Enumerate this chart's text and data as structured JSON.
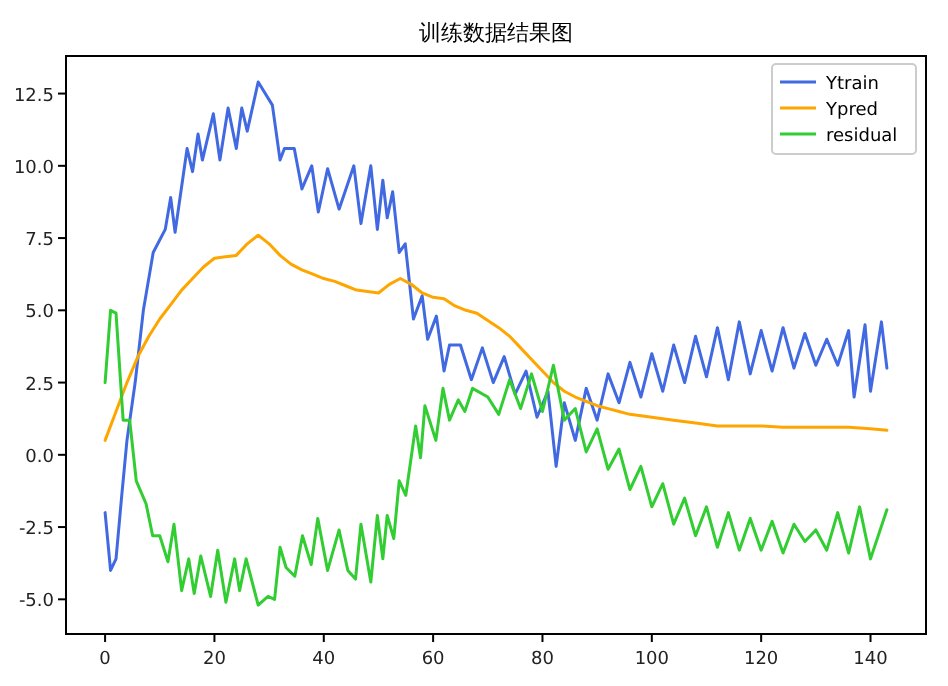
{
  "chart_data": {
    "type": "line",
    "title": "训练数据结果图",
    "xlim": [
      -7.15,
      150.15
    ],
    "ylim": [
      -6.2,
      13.8
    ],
    "xticks": [
      0,
      20,
      40,
      60,
      80,
      100,
      120,
      140
    ],
    "yticks": [
      {
        "value": -5,
        "label": "-5.0"
      },
      {
        "value": -2.5,
        "label": "-2.5"
      },
      {
        "value": 0,
        "label": "0.0"
      },
      {
        "value": 2.5,
        "label": "2.5"
      },
      {
        "value": 5,
        "label": "5.0"
      },
      {
        "value": 7.5,
        "label": "7.5"
      },
      {
        "value": 10,
        "label": "10.0"
      },
      {
        "value": 12.5,
        "label": "12.5"
      }
    ],
    "grid": false,
    "legend": "top right",
    "series": [
      {
        "name": "Ytrain",
        "color": "#4169e1",
        "x": [
          0,
          1,
          2,
          3,
          4,
          5.5,
          7,
          8.8,
          11,
          12,
          12.8,
          15,
          16,
          17,
          17.8,
          19.8,
          21,
          22.5,
          24,
          25,
          26,
          28,
          30.6,
          32,
          32.8,
          34.6,
          36,
          37.8,
          39,
          40.7,
          42.8,
          45.5,
          46.8,
          48.6,
          49.8,
          50.8,
          51.6,
          52.6,
          53.8,
          54.9,
          56.4,
          58,
          59,
          60.6,
          62,
          63,
          65,
          67,
          69,
          71,
          73,
          75,
          77,
          79,
          81,
          82.5,
          84,
          86,
          88,
          90,
          92,
          94,
          96,
          98,
          100,
          102,
          104,
          106,
          108,
          110,
          112,
          114,
          116,
          118,
          120,
          122,
          124,
          126,
          128,
          130,
          132,
          134,
          136,
          137,
          139,
          140,
          142,
          143
        ],
        "values": [
          -2,
          -4,
          -3.6,
          -1.5,
          0.5,
          2.5,
          5,
          7,
          7.8,
          8.9,
          7.7,
          10.6,
          9.8,
          11.1,
          10.2,
          11.8,
          10.2,
          12,
          10.6,
          12,
          11.2,
          12.9,
          12.1,
          10.2,
          10.6,
          10.6,
          9.2,
          10,
          8.4,
          9.9,
          8.5,
          10,
          8,
          10,
          7.8,
          9.5,
          8.2,
          9.1,
          7,
          7.3,
          4.7,
          5.5,
          4,
          4.8,
          2.9,
          3.8,
          3.8,
          2.6,
          3.7,
          2.5,
          3.4,
          2.1,
          2.9,
          1.3,
          2.2,
          -0.4,
          1.8,
          0.5,
          2.3,
          1.2,
          2.8,
          1.8,
          3.2,
          2,
          3.5,
          2.2,
          3.8,
          2.5,
          4.1,
          2.7,
          4.4,
          2.6,
          4.6,
          2.8,
          4.3,
          2.9,
          4.4,
          3,
          4.2,
          3.1,
          4,
          3.1,
          4.3,
          2,
          4.5,
          2.2,
          4.6,
          3
        ]
      },
      {
        "name": "Ypred",
        "color": "#ffa500",
        "x": [
          0,
          2,
          4,
          6,
          8,
          10,
          12,
          14,
          16,
          18,
          20,
          22,
          24,
          26,
          28,
          30,
          32,
          34,
          36,
          38,
          40,
          42,
          44,
          46,
          48,
          50,
          52,
          54,
          56,
          58,
          60,
          62,
          64,
          66,
          68,
          70,
          72,
          74,
          76,
          78,
          80,
          82,
          84,
          86,
          88,
          90,
          92,
          94,
          96,
          98,
          100,
          104,
          108,
          112,
          116,
          120,
          124,
          128,
          132,
          136,
          140,
          143
        ],
        "values": [
          0.5,
          1.5,
          2.5,
          3.4,
          4.1,
          4.7,
          5.2,
          5.7,
          6.1,
          6.5,
          6.8,
          6.85,
          6.9,
          7.3,
          7.6,
          7.3,
          6.9,
          6.6,
          6.4,
          6.25,
          6.1,
          6,
          5.85,
          5.7,
          5.65,
          5.6,
          5.9,
          6.1,
          5.9,
          5.6,
          5.45,
          5.4,
          5.15,
          5,
          4.9,
          4.65,
          4.4,
          4.1,
          3.7,
          3.3,
          2.9,
          2.5,
          2.2,
          2,
          1.85,
          1.7,
          1.6,
          1.5,
          1.4,
          1.35,
          1.3,
          1.2,
          1.1,
          1,
          1,
          1,
          0.95,
          0.95,
          0.95,
          0.95,
          0.9,
          0.85
        ]
      },
      {
        "name": "residual",
        "color": "#32cd32",
        "x": [
          0,
          1,
          2,
          3.3,
          4.5,
          5.7,
          7.5,
          8.7,
          10,
          11.5,
          12.6,
          14,
          15.3,
          16.3,
          17.5,
          19.3,
          20.6,
          22.1,
          23.7,
          24.6,
          25.8,
          28,
          29.8,
          31,
          32,
          33.1,
          34.7,
          36.1,
          37.7,
          38.9,
          40.7,
          42.8,
          44.4,
          45.8,
          46.8,
          48.6,
          49.8,
          50.8,
          51.6,
          52.8,
          53.8,
          55,
          56.8,
          57.7,
          58.5,
          60.5,
          61.8,
          63,
          64.6,
          65.8,
          67.2,
          70,
          72,
          74,
          76,
          78,
          80,
          82,
          84,
          86,
          88,
          90,
          92,
          94,
          96,
          98,
          100,
          102,
          104,
          106,
          108,
          110,
          112,
          114,
          116,
          118,
          120,
          122,
          124,
          126,
          128,
          130,
          132,
          134,
          136,
          138,
          140,
          143
        ],
        "values": [
          2.5,
          5,
          4.9,
          1.2,
          1.2,
          -0.9,
          -1.7,
          -2.8,
          -2.8,
          -3.7,
          -2.4,
          -4.7,
          -3.6,
          -4.8,
          -3.5,
          -4.9,
          -3.3,
          -5.1,
          -3.6,
          -4.7,
          -3.6,
          -5.2,
          -4.9,
          -5,
          -3.2,
          -3.9,
          -4.2,
          -2.8,
          -3.8,
          -2.2,
          -4,
          -2.6,
          -4,
          -4.3,
          -2.4,
          -4.4,
          -2.1,
          -3.6,
          -2.1,
          -2.9,
          -0.9,
          -1.4,
          1,
          -0.1,
          1.7,
          0.5,
          2.3,
          1.2,
          1.9,
          1.5,
          2.3,
          2,
          1.4,
          2.6,
          1.6,
          2.8,
          1.5,
          3.1,
          1.2,
          1.6,
          0.1,
          0.9,
          -0.5,
          0.2,
          -1.2,
          -0.4,
          -1.8,
          -1,
          -2.4,
          -1.5,
          -2.8,
          -1.8,
          -3.2,
          -2,
          -3.3,
          -2.2,
          -3.3,
          -2.3,
          -3.4,
          -2.4,
          -3,
          -2.6,
          -3.3,
          -2,
          -3.4,
          -1.8,
          -3.6,
          -1.9
        ]
      }
    ]
  }
}
